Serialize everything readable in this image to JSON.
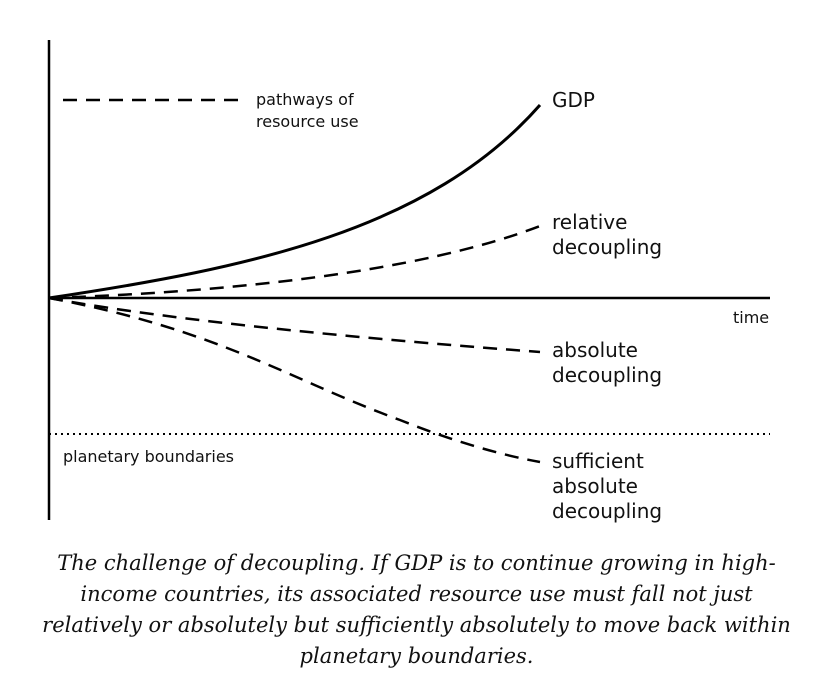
{
  "diagram": {
    "legend_label_line1": "pathways of",
    "legend_label_line2": "resource use",
    "time_axis_label": "time",
    "boundary_label": "planetary boundaries",
    "curves": {
      "gdp": "GDP",
      "relative_line1": "relative",
      "relative_line2": "decoupling",
      "absolute_line1": "absolute",
      "absolute_line2": "decoupling",
      "sufficient_line1": "sufficient",
      "sufficient_line2": "absolute",
      "sufficient_line3": "decoupling"
    }
  },
  "caption": "The challenge of decoupling. If GDP is to continue growing in high-income countries, its associated resource use must fall not just relatively or absolutely but sufficiently absolutely to move back within planetary boundaries."
}
